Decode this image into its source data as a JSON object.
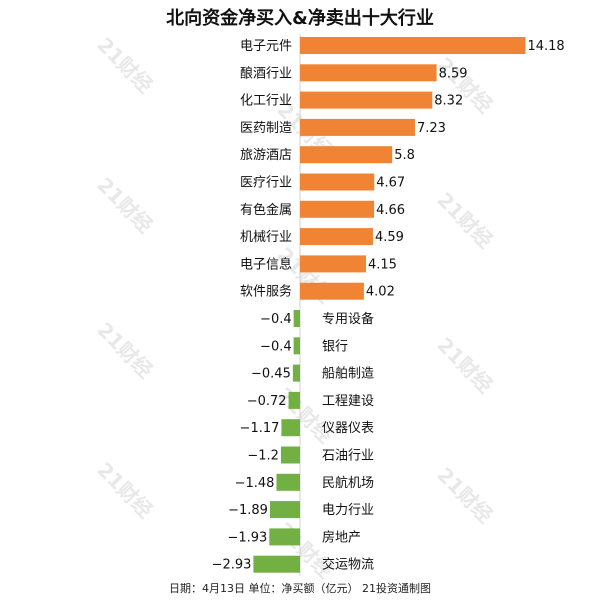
{
  "title": "北向资金净买入&净卖出十大行业",
  "footer": "日期：4月13日 单位：净买额（亿元） 21投资通制图",
  "watermark": "21财经",
  "chart_data": {
    "type": "bar",
    "orientation": "horizontal",
    "title": "北向资金净买入&净卖出十大行业",
    "categories": [
      "电子元件",
      "酿酒行业",
      "化工行业",
      "医药制造",
      "旅游酒店",
      "医疗行业",
      "有色金属",
      "机械行业",
      "电子信息",
      "软件服务",
      "专用设备",
      "银行",
      "船舶制造",
      "工程建设",
      "仪器仪表",
      "石油行业",
      "民航机场",
      "电力行业",
      "房地产",
      "交运物流"
    ],
    "values": [
      14.18,
      8.59,
      8.32,
      7.23,
      5.8,
      4.67,
      4.66,
      4.59,
      4.15,
      4.02,
      -0.4,
      -0.4,
      -0.45,
      -0.72,
      -1.17,
      -1.2,
      -1.48,
      -1.89,
      -1.93,
      -2.93
    ],
    "value_labels": [
      "14.18",
      "8.59",
      "8.32",
      "7.23",
      "5.8",
      "4.67",
      "4.66",
      "4.59",
      "4.15",
      "4.02",
      "−0.4",
      "−0.4",
      "−0.45",
      "−0.72",
      "−1.17",
      "−1.2",
      "−1.48",
      "−1.89",
      "−1.93",
      "−2.93"
    ],
    "colors": {
      "positive": "#F08434",
      "negative": "#72B043"
    },
    "grid": false,
    "legend": "none"
  }
}
